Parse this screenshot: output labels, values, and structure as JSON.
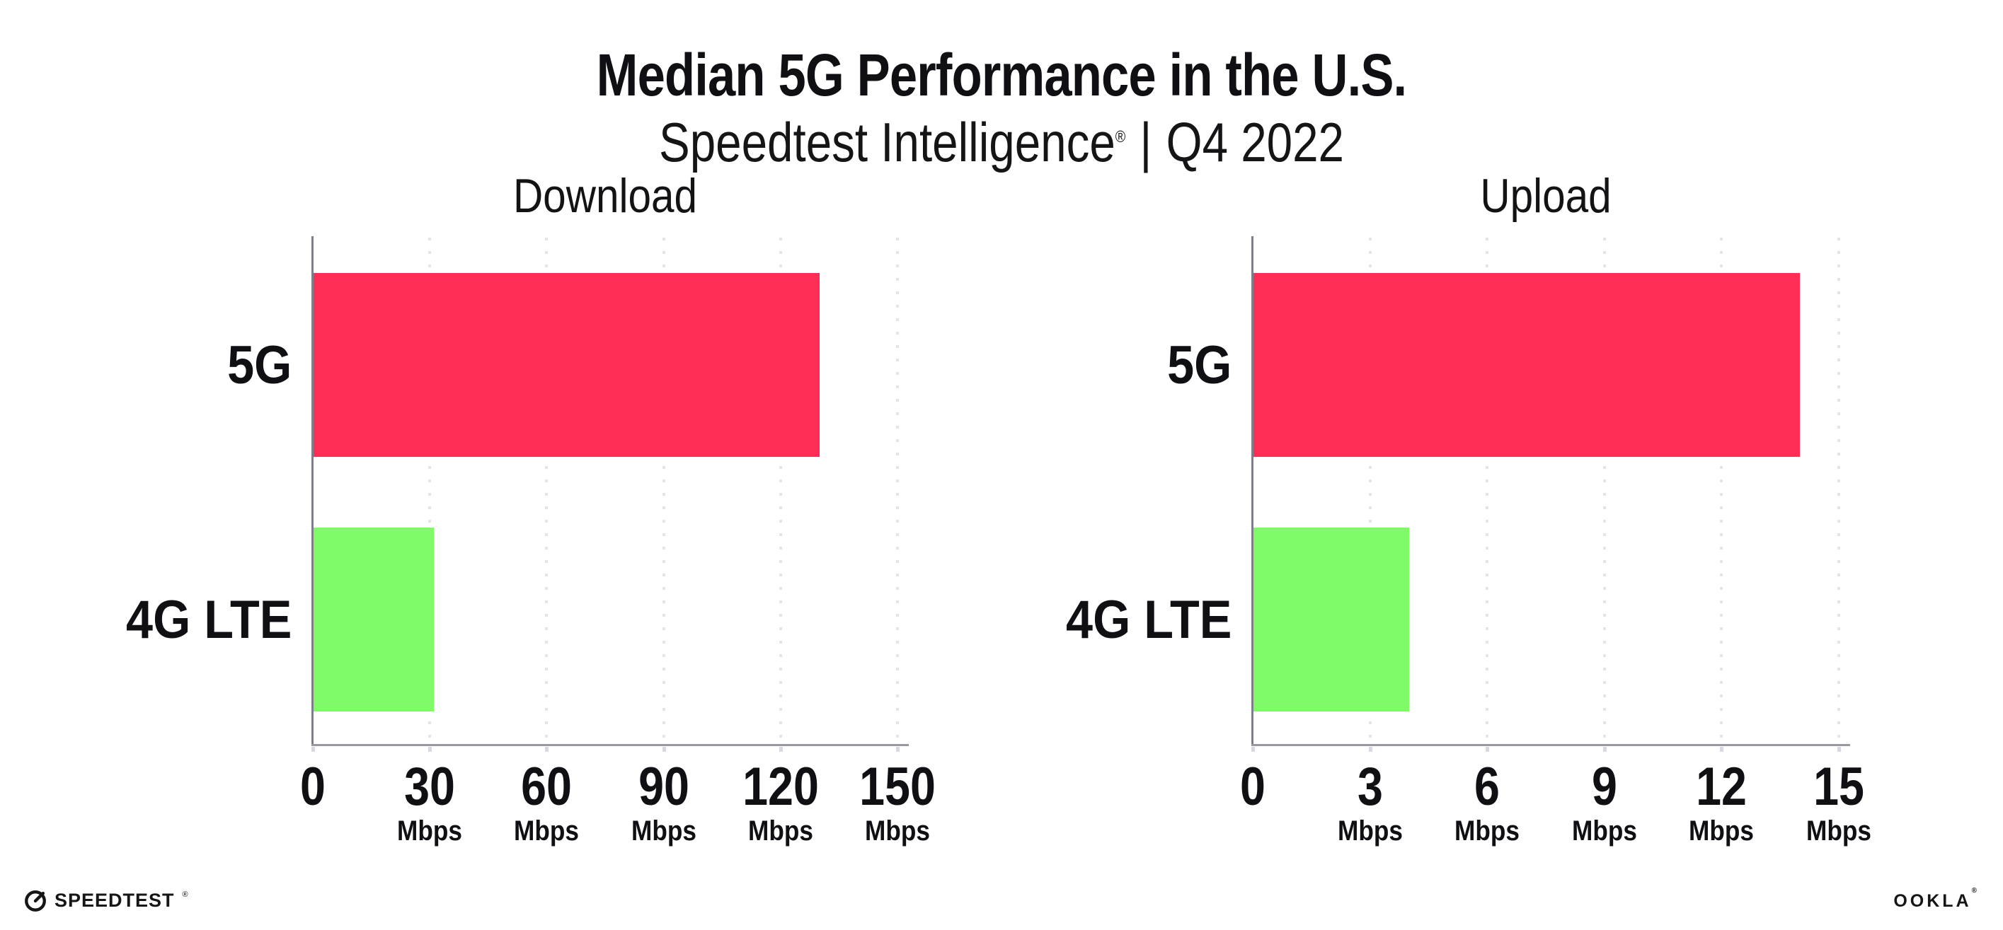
{
  "header": {
    "title": "Median 5G Performance in the U.S.",
    "subtitle_brand": "Speedtest Intelligence",
    "subtitle_reg": "®",
    "subtitle_separator": "|",
    "subtitle_period": "Q4 2022"
  },
  "colors": {
    "bar_5g": "#FF2E56",
    "bar_4g_lte": "#7EFB66",
    "grid": "#E4E4EE",
    "axis_x": "#98989F",
    "axis_y": "#7E7E86",
    "tickmark": "#D8D8E2",
    "text": "#101014",
    "background": "#FFFFFF"
  },
  "chart_data": [
    {
      "type": "bar",
      "orientation": "horizontal",
      "title": "Download",
      "categories": [
        "5G",
        "4G LTE"
      ],
      "values": [
        130,
        31
      ],
      "unit": "Mbps",
      "xlim": [
        0,
        150
      ],
      "xticks": [
        0,
        30,
        60,
        90,
        120,
        150
      ],
      "tick_unit_label": "Mbps",
      "bar_colors": [
        "#FF2E56",
        "#7EFB66"
      ],
      "grid": "dotted-vertical",
      "legend": "none"
    },
    {
      "type": "bar",
      "orientation": "horizontal",
      "title": "Upload",
      "categories": [
        "5G",
        "4G LTE"
      ],
      "values": [
        14,
        4
      ],
      "unit": "Mbps",
      "xlim": [
        0,
        15
      ],
      "xticks": [
        0,
        3,
        6,
        9,
        12,
        15
      ],
      "tick_unit_label": "Mbps",
      "bar_colors": [
        "#FF2E56",
        "#7EFB66"
      ],
      "grid": "dotted-vertical",
      "legend": "none"
    }
  ],
  "footer": {
    "speedtest_label": "SPEEDTEST",
    "speedtest_reg": "®",
    "ookla_label": "OOKLA",
    "ookla_reg": "®"
  }
}
